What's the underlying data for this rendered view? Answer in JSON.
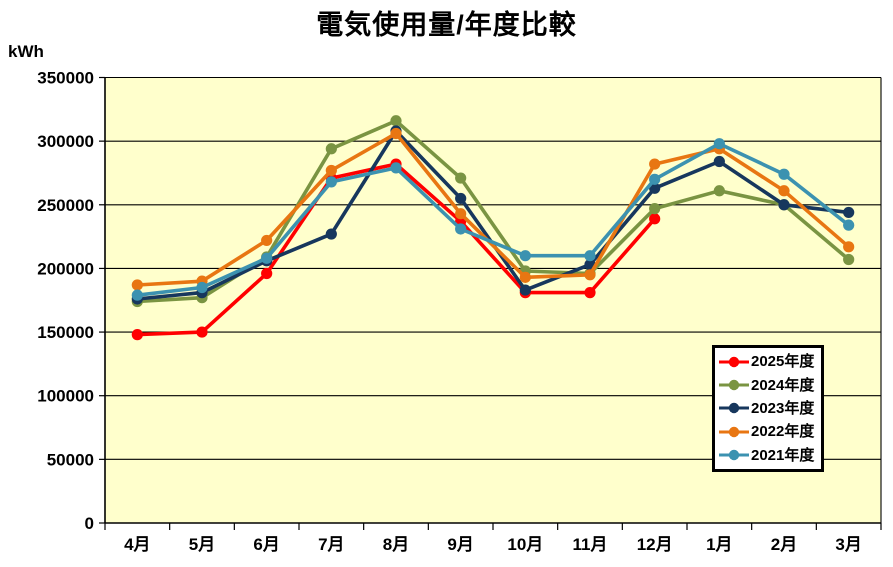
{
  "title": "電気使用量/年度比較",
  "unit_label": "kWh",
  "chart_data": {
    "type": "line",
    "title": "電気使用量/年度比較",
    "ylabel": "kWh",
    "xlabel": "",
    "categories": [
      "4月",
      "5月",
      "6月",
      "7月",
      "8月",
      "9月",
      "10月",
      "11月",
      "12月",
      "1月",
      "2月",
      "3月"
    ],
    "series": [
      {
        "name": "2025年度",
        "color": "#FF0000",
        "values": [
          148000,
          150000,
          196000,
          271000,
          282000,
          237000,
          181000,
          181000,
          239000,
          null,
          null,
          null
        ]
      },
      {
        "name": "2024年度",
        "color": "#7A9442",
        "values": [
          174000,
          177000,
          209000,
          294000,
          316000,
          271000,
          198000,
          196000,
          247000,
          261000,
          250000,
          207000
        ]
      },
      {
        "name": "2023年度",
        "color": "#17375D",
        "values": [
          176000,
          181000,
          206000,
          227000,
          308000,
          255000,
          183000,
          203000,
          263000,
          284000,
          250000,
          244000
        ]
      },
      {
        "name": "2022年度",
        "color": "#E87612",
        "values": [
          187000,
          190000,
          222000,
          277000,
          306000,
          243000,
          193000,
          195000,
          282000,
          294000,
          261000,
          217000
        ]
      },
      {
        "name": "2021年度",
        "color": "#3C92B0",
        "values": [
          179000,
          185000,
          208000,
          268000,
          279000,
          231000,
          210000,
          210000,
          270000,
          298000,
          274000,
          234000
        ]
      }
    ],
    "ylim": [
      0,
      350000
    ],
    "ytick_step": 50000,
    "grid": "horizontal",
    "plot_background": "#FFFFCC",
    "legend_position": "inside-right"
  }
}
